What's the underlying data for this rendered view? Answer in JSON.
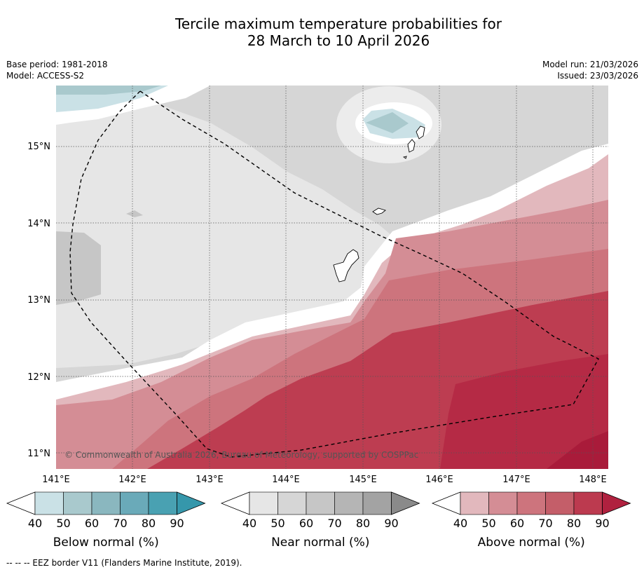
{
  "title": {
    "line1": "Tercile maximum temperature probabilities for",
    "line2": "28 March to 10 April 2026"
  },
  "meta": {
    "base_period": "Base period: 1981-2018",
    "model": "Model: ACCESS-S2",
    "model_run": "Model run: 21/03/2026",
    "issued": "Issued: 23/03/2026"
  },
  "map": {
    "lat_labels": [
      "15°N",
      "14°N",
      "13°N",
      "12°N",
      "11°N"
    ],
    "lon_labels": [
      "141°E",
      "142°E",
      "143°E",
      "144°E",
      "145°E",
      "146°E",
      "147°E",
      "148°E"
    ],
    "copyright": "© Commonwealth of Australia 2026, Bureau of Meteorology, supported by COSPPac"
  },
  "colorbars": [
    {
      "label": "Below normal (%)",
      "ticks": [
        "40",
        "50",
        "60",
        "70",
        "80",
        "90"
      ],
      "colors": [
        "#cae1e6",
        "#a9c9cd",
        "#8ab7bf",
        "#6aaab9",
        "#49a1b2",
        "#3597ab"
      ]
    },
    {
      "label": "Near normal (%)",
      "ticks": [
        "40",
        "50",
        "60",
        "70",
        "80",
        "90"
      ],
      "colors": [
        "#e6e6e6",
        "#d6d6d6",
        "#c6c6c6",
        "#b5b5b5",
        "#a3a3a3",
        "#8a8a8a"
      ]
    },
    {
      "label": "Above normal (%)",
      "ticks": [
        "40",
        "50",
        "60",
        "70",
        "80",
        "90"
      ],
      "colors": [
        "#e2b8bd",
        "#d48d95",
        "#cd747d",
        "#c45e69",
        "#bc3a4f",
        "#b0213f"
      ]
    }
  ],
  "footer": "--  --  -- EEZ border V11 (Flanders Marine Institute, 2019)."
}
